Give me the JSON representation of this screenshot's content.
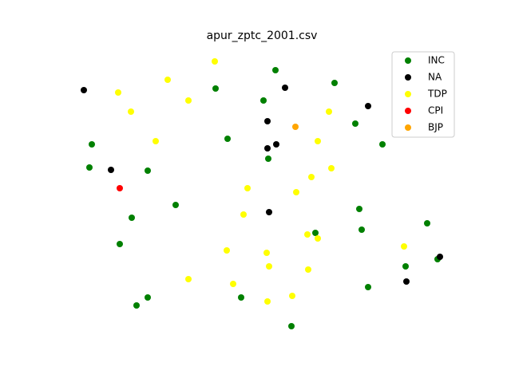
{
  "chart_data": {
    "type": "scatter",
    "title": "apur_zptc_2001.csv",
    "xlim": [
      80,
      576
    ],
    "ylim": [
      53,
      422
    ],
    "legend": "upper right",
    "series": [
      {
        "name": "INC",
        "color": "green",
        "x": [
          345,
          270,
          419,
          330,
          445,
          479,
          115,
          285,
          112,
          185,
          336,
          220,
          165,
          450,
          453,
          535,
          395,
          150,
          508,
          548,
          461,
          185,
          171,
          302,
          365
        ],
        "y": [
          392,
          369,
          376,
          354,
          325,
          299,
          299,
          306,
          270,
          266,
          281,
          223,
          207,
          218,
          192,
          200,
          188,
          174,
          146,
          155,
          120,
          107,
          97,
          107,
          71
        ]
      },
      {
        "name": "NA",
        "color": "black",
        "x": [
          105,
          357,
          461,
          335,
          346,
          335,
          139,
          337,
          551,
          509
        ],
        "y": [
          367,
          370,
          347,
          328,
          299,
          294,
          267,
          214,
          158,
          127
        ]
      },
      {
        "name": "TDP",
        "color": "yellow",
        "x": [
          269,
          210,
          148,
          236,
          164,
          412,
          195,
          398,
          415,
          390,
          310,
          371,
          305,
          385,
          398,
          284,
          334,
          506,
          337,
          386,
          236,
          292,
          366,
          335
        ],
        "y": [
          403,
          380,
          364,
          354,
          340,
          340,
          303,
          303,
          269,
          258,
          244,
          239,
          211,
          186,
          181,
          166,
          163,
          171,
          146,
          142,
          130,
          124,
          109,
          102
        ]
      },
      {
        "name": "CPI",
        "color": "red",
        "x": [
          150
        ],
        "y": [
          244
        ]
      },
      {
        "name": "BJP",
        "color": "orange",
        "x": [
          370
        ],
        "y": [
          321
        ]
      }
    ]
  }
}
